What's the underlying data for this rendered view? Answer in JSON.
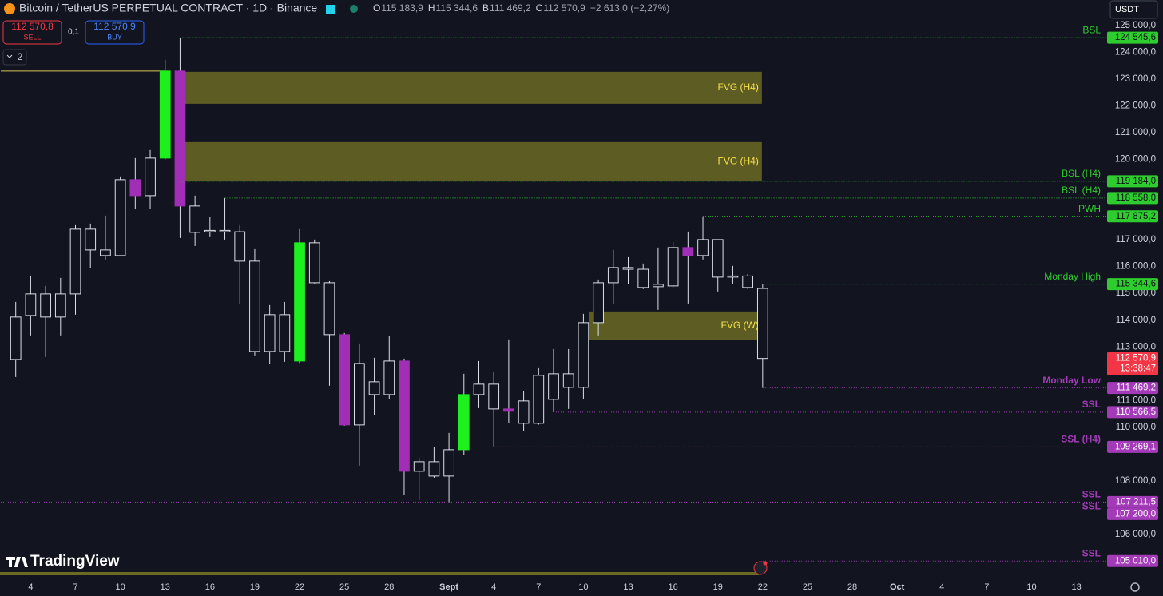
{
  "header": {
    "title": "Bitcoin / TetherUS PERPETUAL CONTRACT · 1D · Binance",
    "ohlc": [
      {
        "key": "O",
        "value": "115 183,9"
      },
      {
        "key": "H",
        "value": "115 344,6"
      },
      {
        "key": "B",
        "value": "111 469,2"
      },
      {
        "key": "C",
        "value": "112 570,9"
      }
    ],
    "change": "−2 613,0 (−2,27%)",
    "sell_price": "112 570,8",
    "sell": "SELL",
    "spread": "0,1",
    "buy_price": "112 570,9",
    "buy": "BUY",
    "indicators": "2",
    "currency": "USDT",
    "brand": "TradingView"
  },
  "chart_data": {
    "type": "candlestick",
    "xlim": [
      "08-02",
      "10-15"
    ],
    "xticks": [
      {
        "value": "08-04",
        "label": "4"
      },
      {
        "value": "08-07",
        "label": "7"
      },
      {
        "value": "08-10",
        "label": "10"
      },
      {
        "value": "08-13",
        "label": "13"
      },
      {
        "value": "08-16",
        "label": "16"
      },
      {
        "value": "08-19",
        "label": "19"
      },
      {
        "value": "08-22",
        "label": "22"
      },
      {
        "value": "08-25",
        "label": "25"
      },
      {
        "value": "08-28",
        "label": "28"
      },
      {
        "value": "09-01",
        "label": "Sept"
      },
      {
        "value": "09-04",
        "label": "4"
      },
      {
        "value": "09-07",
        "label": "7"
      },
      {
        "value": "09-10",
        "label": "10"
      },
      {
        "value": "09-13",
        "label": "13"
      },
      {
        "value": "09-16",
        "label": "16"
      },
      {
        "value": "09-19",
        "label": "19"
      },
      {
        "value": "09-22",
        "label": "22"
      },
      {
        "value": "09-25",
        "label": "25"
      },
      {
        "value": "09-28",
        "label": "28"
      },
      {
        "value": "10-01",
        "label": "Oct"
      },
      {
        "value": "10-04",
        "label": "4"
      },
      {
        "value": "10-07",
        "label": "7"
      },
      {
        "value": "10-10",
        "label": "10"
      },
      {
        "value": "10-13",
        "label": "13"
      }
    ],
    "ylim": [
      104480,
      125950
    ],
    "yticks": [
      {
        "value": 125000,
        "label": "125 000,0"
      },
      {
        "value": 124000,
        "label": "124 000,0"
      },
      {
        "value": 123000,
        "label": "123 000,0"
      },
      {
        "value": 122000,
        "label": "122 000,0"
      },
      {
        "value": 121000,
        "label": "121 000,0"
      },
      {
        "value": 120000,
        "label": "120 000,0"
      },
      {
        "value": 117000,
        "label": "117 000,0"
      },
      {
        "value": 116000,
        "label": "116 000,0"
      },
      {
        "value": 115000,
        "label": "115 000,0"
      },
      {
        "value": 114000,
        "label": "114 000,0"
      },
      {
        "value": 113000,
        "label": "113 000,0"
      },
      {
        "value": 111000,
        "label": "111 000,0"
      },
      {
        "value": 110000,
        "label": "110 000,0"
      },
      {
        "value": 108000,
        "label": "108 000,0"
      },
      {
        "value": 106000,
        "label": "106 000,0"
      }
    ],
    "candle_color": "#dcdfe6",
    "candles": [
      {
        "date": "08-03",
        "open": 112535,
        "high": 114682,
        "low": 111879,
        "close": 114116
      },
      {
        "date": "08-04",
        "open": 114175,
        "high": 115666,
        "low": 113430,
        "close": 114980
      },
      {
        "date": "08-05",
        "open": 114980,
        "high": 115278,
        "low": 112624,
        "close": 114116
      },
      {
        "date": "08-06",
        "open": 114116,
        "high": 115577,
        "low": 113430,
        "close": 114980
      },
      {
        "date": "08-07",
        "open": 114980,
        "high": 117545,
        "low": 114205,
        "close": 117396
      },
      {
        "date": "08-08",
        "open": 117396,
        "high": 117604,
        "low": 115934,
        "close": 116620
      },
      {
        "date": "08-09",
        "open": 116620,
        "high": 117903,
        "low": 116263,
        "close": 116412
      },
      {
        "date": "08-10",
        "open": 116412,
        "high": 119364,
        "low": 116382,
        "close": 119244
      },
      {
        "date": "08-11",
        "open": 119244,
        "high": 120050,
        "low": 118141,
        "close": 118648,
        "color": "#a12fb5"
      },
      {
        "date": "08-12",
        "open": 118648,
        "high": 120348,
        "low": 118141,
        "close": 120050
      },
      {
        "date": "08-13",
        "open": 120050,
        "high": 123718,
        "low": 120000,
        "close": 123300,
        "color": "#1ef01e"
      },
      {
        "date": "08-14",
        "open": 123300,
        "high": 124545.6,
        "low": 117068,
        "close": 118261,
        "color": "#a12fb5"
      },
      {
        "date": "08-15",
        "open": 118261,
        "high": 118648,
        "low": 116769,
        "close": 117276
      },
      {
        "date": "08-16",
        "open": 117300,
        "high": 117843,
        "low": 117098,
        "close": 117350
      },
      {
        "date": "08-17",
        "open": 117350,
        "high": 118558,
        "low": 117008,
        "close": 117300
      },
      {
        "date": "08-18",
        "open": 117300,
        "high": 117545,
        "low": 114622,
        "close": 116203
      },
      {
        "date": "08-19",
        "open": 116203,
        "high": 116650,
        "low": 112684,
        "close": 112833
      },
      {
        "date": "08-20",
        "open": 112833,
        "high": 114563,
        "low": 112356,
        "close": 114205
      },
      {
        "date": "08-21",
        "open": 114205,
        "high": 114682,
        "low": 112445,
        "close": 112833
      },
      {
        "date": "08-22",
        "open": 112475,
        "high": 117396,
        "low": 112400,
        "close": 116889,
        "color": "#1ef01e"
      },
      {
        "date": "08-23",
        "open": 116889,
        "high": 117008,
        "low": 115367,
        "close": 115397
      },
      {
        "date": "08-24",
        "open": 115397,
        "high": 115457,
        "low": 111551,
        "close": 113460
      },
      {
        "date": "08-25",
        "open": 113460,
        "high": 113520,
        "low": 110060,
        "close": 110090,
        "color": "#a12fb5"
      },
      {
        "date": "08-26",
        "open": 110090,
        "high": 113132,
        "low": 108569,
        "close": 112386
      },
      {
        "date": "08-27",
        "open": 111223,
        "high": 112595,
        "low": 110448,
        "close": 111700
      },
      {
        "date": "08-28",
        "open": 111223,
        "high": 113400,
        "low": 111044,
        "close": 112475
      },
      {
        "date": "08-29",
        "open": 112475,
        "high": 112565,
        "low": 107465,
        "close": 108360,
        "color": "#a12fb5"
      },
      {
        "date": "08-30",
        "open": 108360,
        "high": 108867,
        "low": 107286,
        "close": 108718
      },
      {
        "date": "08-31",
        "open": 108718,
        "high": 109255,
        "low": 108121,
        "close": 108181
      },
      {
        "date": "09-01",
        "open": 108181,
        "high": 109792,
        "low": 107200,
        "close": 109165
      },
      {
        "date": "09-02",
        "open": 109165,
        "high": 111998,
        "low": 108956,
        "close": 111223,
        "color": "#1ef01e"
      },
      {
        "date": "09-03",
        "open": 111223,
        "high": 112475,
        "low": 110716,
        "close": 111611
      },
      {
        "date": "09-04",
        "open": 111611,
        "high": 112088,
        "low": 109269.1,
        "close": 110686
      },
      {
        "date": "09-05",
        "open": 110686,
        "high": 113281,
        "low": 110150,
        "close": 110600,
        "color": "#a12fb5"
      },
      {
        "date": "09-06",
        "open": 110150,
        "high": 111343,
        "low": 109851,
        "close": 110985
      },
      {
        "date": "09-07",
        "open": 110150,
        "high": 112237,
        "low": 110100,
        "close": 111939
      },
      {
        "date": "09-08",
        "open": 111044,
        "high": 112923,
        "low": 110566.5,
        "close": 111998
      },
      {
        "date": "09-09",
        "open": 111998,
        "high": 112923,
        "low": 110686,
        "close": 111491
      },
      {
        "date": "09-10",
        "open": 111491,
        "high": 114235,
        "low": 111044,
        "close": 113907
      },
      {
        "date": "09-11",
        "open": 113907,
        "high": 115517,
        "low": 113430,
        "close": 115397
      },
      {
        "date": "09-12",
        "open": 115397,
        "high": 116620,
        "low": 114622,
        "close": 115964
      },
      {
        "date": "09-13",
        "open": 115964,
        "high": 116352,
        "low": 115338,
        "close": 115900
      },
      {
        "date": "09-14",
        "open": 115900,
        "high": 116114,
        "low": 115159,
        "close": 115219
      },
      {
        "date": "09-15",
        "open": 115338,
        "high": 116710,
        "low": 114384,
        "close": 115250
      },
      {
        "date": "09-16",
        "open": 115278,
        "high": 116919,
        "low": 115219,
        "close": 116710
      },
      {
        "date": "09-17",
        "open": 116710,
        "high": 117306,
        "low": 114622,
        "close": 116412,
        "color": "#a12fb5"
      },
      {
        "date": "09-18",
        "open": 116412,
        "high": 117875.2,
        "low": 116263,
        "close": 117008
      },
      {
        "date": "09-19",
        "open": 117008,
        "high": 117008,
        "low": 115070,
        "close": 115606
      },
      {
        "date": "09-20",
        "open": 115606,
        "high": 116024,
        "low": 115367,
        "close": 115650
      },
      {
        "date": "09-21",
        "open": 115650,
        "high": 115726,
        "low": 115159,
        "close": 115219
      },
      {
        "date": "09-22",
        "open": 115183.9,
        "high": 115344.6,
        "low": 111469.2,
        "close": 112570.9
      }
    ],
    "zones": [
      {
        "label": "FVG (H4)",
        "top": 123270,
        "bottom": 122078,
        "from": "08-14",
        "to": "09-22",
        "color": "#6b6a25",
        "text_color": "#f5e04a"
      },
      {
        "label": "FVG (H4)",
        "top": 120646,
        "bottom": 119185,
        "from": "08-14",
        "to": "09-22",
        "color": "#6b6a25",
        "text_color": "#f5e04a"
      },
      {
        "label": "FVG (W)",
        "top": 114324,
        "bottom": 113251,
        "from": "09-10",
        "to": "09-22",
        "color": "#6b6a25",
        "text_color": "#f5e04a"
      }
    ],
    "lines": [
      {
        "value": 123300,
        "from": "08-02",
        "to": "08-13",
        "color": "#d8c350"
      }
    ],
    "levels": [
      {
        "label": "BSL",
        "value": 124545.6,
        "value_label": "124 545,6",
        "from": "08-14",
        "color": "#2fcc2f"
      },
      {
        "label": "BSL (H4)",
        "value": 119184,
        "value_label": "119 184,0",
        "from": "08-14",
        "color": "#2fcc2f"
      },
      {
        "label": "BSL (H4)",
        "value": 118558,
        "value_label": "118 558,0",
        "from": "08-17",
        "color": "#2fcc2f"
      },
      {
        "label": "PWH",
        "value": 117875.2,
        "value_label": "117 875,2",
        "from": "09-18",
        "color": "#2fcc2f"
      },
      {
        "label": "Monday High",
        "value": 115344.6,
        "value_label": "115 344,6",
        "from": "09-22",
        "color": "#2fcc2f"
      },
      {
        "label": "Monday Low",
        "value": 111469.2,
        "value_label": "111 469,2",
        "from": "09-22",
        "color": "#a33bb8"
      },
      {
        "label": "SSL",
        "value": 110566.5,
        "value_label": "110 566,5",
        "from": "09-08",
        "color": "#a33bb8"
      },
      {
        "label": "SSL (H4)",
        "value": 109269.1,
        "value_label": "109 269,1",
        "from": "09-04",
        "color": "#a33bb8"
      },
      {
        "label": "SSL",
        "value": 107211.5,
        "value_label": "107 211,5",
        "from": "08-02",
        "color": "#a33bb8"
      },
      {
        "label": "SSL",
        "value": 107200,
        "value_label": "107 200,0",
        "from": "09-01",
        "color": "#a33bb8"
      },
      {
        "label": "SSL",
        "value": 105010,
        "value_label": "105 010,0",
        "from": "09-22",
        "color": "#a33bb8"
      }
    ],
    "last_price": {
      "value": 112570.9,
      "value_label": "112 570,9",
      "countdown": "13:38:47",
      "color": "#f23645"
    }
  }
}
